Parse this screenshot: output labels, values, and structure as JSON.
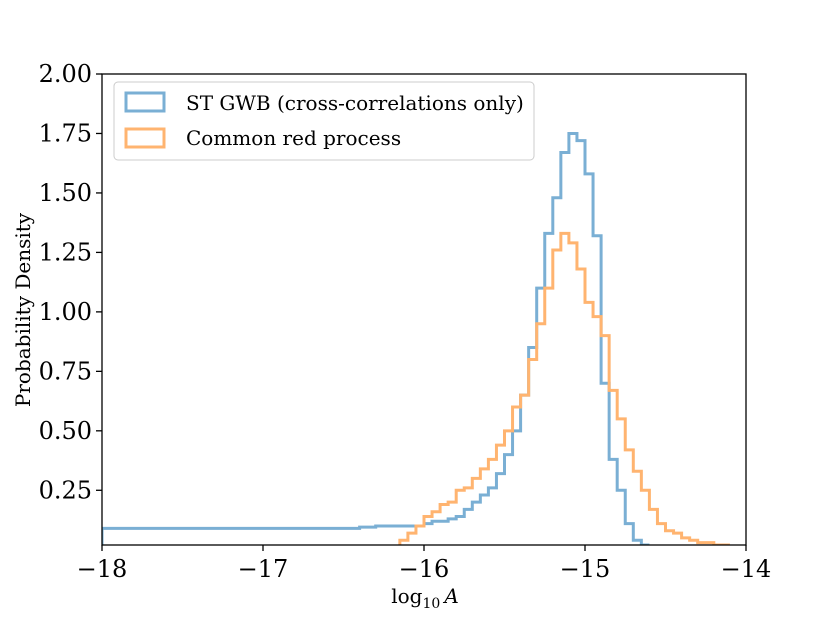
{
  "chart_data": {
    "type": "histogram",
    "title": "",
    "xlabel": "log10 A",
    "xlabel_main": "log",
    "xlabel_sub": "10",
    "xlabel_var": "A",
    "ylabel": "Probability Density",
    "xlim": [
      -18,
      -14
    ],
    "ylim": [
      0.02,
      2.0
    ],
    "x_ticks": [
      -18,
      -17,
      -16,
      -15,
      -14
    ],
    "x_tick_labels": [
      "−18",
      "−17",
      "−16",
      "−15",
      "−14"
    ],
    "y_ticks": [
      0.25,
      0.5,
      0.75,
      1.0,
      1.25,
      1.5,
      1.75,
      2.0
    ],
    "y_tick_labels": [
      "0.25",
      "0.50",
      "0.75",
      "1.00",
      "1.25",
      "1.50",
      "1.75",
      "2.00"
    ],
    "legend_position": "top-left",
    "series": [
      {
        "name": "ST GWB (cross-correlations only)",
        "color": "#7aafd4",
        "edges": [
          -18.0,
          -17.9,
          -17.8,
          -17.7,
          -17.6,
          -17.5,
          -17.4,
          -17.3,
          -17.2,
          -17.1,
          -17.0,
          -16.9,
          -16.8,
          -16.7,
          -16.6,
          -16.5,
          -16.4,
          -16.3,
          -16.2,
          -16.1,
          -16.0,
          -15.95,
          -15.9,
          -15.85,
          -15.8,
          -15.75,
          -15.7,
          -15.65,
          -15.6,
          -15.55,
          -15.5,
          -15.45,
          -15.4,
          -15.35,
          -15.3,
          -15.25,
          -15.2,
          -15.15,
          -15.1,
          -15.05,
          -15.0,
          -14.95,
          -14.9,
          -14.85,
          -14.8,
          -14.75,
          -14.7,
          -14.65,
          -14.6
        ],
        "values": [
          0.09,
          0.09,
          0.09,
          0.09,
          0.09,
          0.09,
          0.09,
          0.09,
          0.09,
          0.09,
          0.09,
          0.09,
          0.09,
          0.09,
          0.09,
          0.09,
          0.095,
          0.1,
          0.1,
          0.1,
          0.11,
          0.12,
          0.12,
          0.13,
          0.14,
          0.17,
          0.2,
          0.23,
          0.26,
          0.32,
          0.4,
          0.5,
          0.65,
          0.85,
          1.1,
          1.33,
          1.48,
          1.67,
          1.75,
          1.72,
          1.58,
          1.32,
          0.7,
          0.38,
          0.25,
          0.11,
          0.04,
          0.02
        ]
      },
      {
        "name": "Common red process",
        "color": "#ffb470",
        "edges": [
          -16.15,
          -16.1,
          -16.05,
          -16.0,
          -15.95,
          -15.9,
          -15.85,
          -15.8,
          -15.75,
          -15.7,
          -15.65,
          -15.6,
          -15.55,
          -15.5,
          -15.45,
          -15.4,
          -15.35,
          -15.3,
          -15.25,
          -15.2,
          -15.15,
          -15.1,
          -15.05,
          -15.0,
          -14.95,
          -14.9,
          -14.85,
          -14.8,
          -14.75,
          -14.7,
          -14.65,
          -14.6,
          -14.55,
          -14.5,
          -14.45,
          -14.4,
          -14.35,
          -14.3,
          -14.25,
          -14.2,
          -14.15,
          -14.1
        ],
        "values": [
          0.04,
          0.07,
          0.1,
          0.14,
          0.16,
          0.19,
          0.2,
          0.25,
          0.26,
          0.3,
          0.34,
          0.38,
          0.44,
          0.5,
          0.6,
          0.65,
          0.8,
          0.95,
          1.1,
          1.26,
          1.33,
          1.29,
          1.18,
          1.04,
          0.98,
          0.9,
          0.67,
          0.55,
          0.42,
          0.33,
          0.25,
          0.17,
          0.11,
          0.08,
          0.07,
          0.05,
          0.04,
          0.03,
          0.03,
          0.02,
          0.02
        ]
      }
    ]
  }
}
